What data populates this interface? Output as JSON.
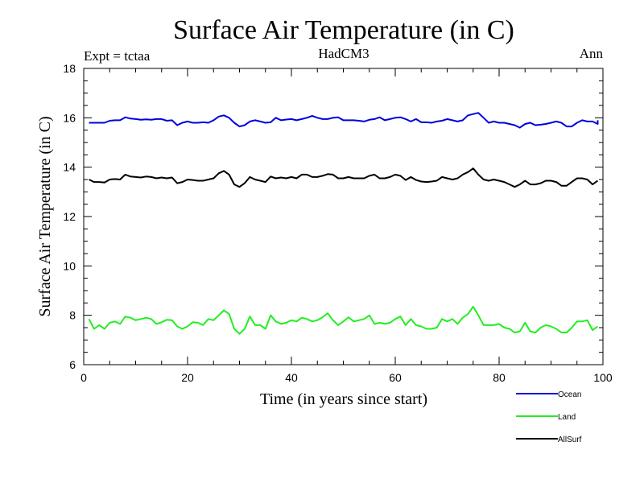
{
  "chart_data": {
    "type": "line",
    "title": "Surface Air Temperature (in C)",
    "subtitle_left": "Expt = tctaa",
    "subtitle_center": "HadCM3",
    "subtitle_right": "Ann",
    "xlabel": "Time (in years since start)",
    "ylabel": "Surface Air Temperature (in C)",
    "xlim": [
      0,
      100
    ],
    "ylim": [
      6,
      18
    ],
    "xticks": [
      0,
      20,
      40,
      60,
      80,
      100
    ],
    "yticks": [
      6,
      8,
      10,
      12,
      14,
      16,
      18
    ],
    "grid": false,
    "legend_position": "bottom-right",
    "x": [
      1,
      2,
      3,
      4,
      5,
      6,
      7,
      8,
      9,
      10,
      11,
      12,
      13,
      14,
      15,
      16,
      17,
      18,
      19,
      20,
      21,
      22,
      23,
      24,
      25,
      26,
      27,
      28,
      29,
      30,
      31,
      32,
      33,
      34,
      35,
      36,
      37,
      38,
      39,
      40,
      41,
      42,
      43,
      44,
      45,
      46,
      47,
      48,
      49,
      50,
      51,
      52,
      53,
      54,
      55,
      56,
      57,
      58,
      59,
      60,
      61,
      62,
      63,
      64,
      65,
      66,
      67,
      68,
      69,
      70,
      71,
      72,
      73,
      74,
      75,
      76,
      77,
      78,
      79,
      80,
      81,
      82,
      83,
      84,
      85,
      86,
      87,
      88,
      89,
      90,
      91,
      92,
      93,
      94,
      95,
      96,
      97,
      98,
      99
    ],
    "series": [
      {
        "name": "Ocean",
        "color": "#0000dd",
        "values": [
          15.8,
          15.8,
          15.8,
          15.8,
          15.88,
          15.9,
          15.9,
          16.02,
          15.97,
          15.95,
          15.92,
          15.94,
          15.92,
          15.95,
          15.95,
          15.88,
          15.9,
          15.7,
          15.8,
          15.85,
          15.8,
          15.8,
          15.82,
          15.8,
          15.9,
          16.05,
          16.1,
          16.0,
          15.8,
          15.65,
          15.7,
          15.85,
          15.9,
          15.85,
          15.8,
          15.82,
          16.0,
          15.9,
          15.93,
          15.95,
          15.9,
          15.95,
          16.0,
          16.08,
          16.0,
          15.95,
          15.95,
          16.0,
          16.02,
          15.9,
          15.9,
          15.9,
          15.88,
          15.85,
          15.92,
          15.95,
          16.02,
          15.9,
          15.95,
          16.0,
          16.02,
          15.95,
          15.85,
          15.95,
          15.82,
          15.82,
          15.8,
          15.85,
          15.88,
          15.95,
          15.9,
          15.85,
          15.9,
          16.1,
          16.15,
          16.2,
          16.0,
          15.8,
          15.85,
          15.8,
          15.8,
          15.75,
          15.7,
          15.6,
          15.75,
          15.8,
          15.7,
          15.72,
          15.75,
          15.8,
          15.85,
          15.8,
          15.65,
          15.65,
          15.8,
          15.9,
          15.85,
          15.85,
          15.75
        ],
        "extra_point": [
          99,
          15.9
        ]
      },
      {
        "name": "Land",
        "color": "#22ee22",
        "values": [
          7.85,
          7.45,
          7.6,
          7.45,
          7.7,
          7.75,
          7.65,
          7.95,
          7.9,
          7.8,
          7.85,
          7.9,
          7.85,
          7.65,
          7.72,
          7.82,
          7.8,
          7.55,
          7.45,
          7.55,
          7.72,
          7.7,
          7.6,
          7.85,
          7.8,
          8.0,
          8.2,
          8.05,
          7.45,
          7.25,
          7.45,
          7.95,
          7.6,
          7.6,
          7.45,
          8.0,
          7.75,
          7.65,
          7.7,
          7.8,
          7.75,
          7.9,
          7.85,
          7.75,
          7.8,
          7.92,
          8.08,
          7.8,
          7.6,
          7.75,
          7.92,
          7.75,
          7.8,
          7.85,
          8.0,
          7.65,
          7.7,
          7.65,
          7.7,
          7.85,
          7.95,
          7.6,
          7.85,
          7.6,
          7.55,
          7.45,
          7.45,
          7.5,
          7.85,
          7.75,
          7.85,
          7.65,
          7.9,
          8.05,
          8.35,
          8.0,
          7.6,
          7.6,
          7.6,
          7.65,
          7.5,
          7.45,
          7.3,
          7.35,
          7.7,
          7.35,
          7.3,
          7.5,
          7.6,
          7.55,
          7.45,
          7.3,
          7.3,
          7.5,
          7.75,
          7.75,
          7.8,
          7.4,
          7.55
        ],
        "extra_point": null
      },
      {
        "name": "AllSurf",
        "color": "#000000",
        "values": [
          13.5,
          13.4,
          13.4,
          13.38,
          13.5,
          13.52,
          13.5,
          13.7,
          13.62,
          13.6,
          13.58,
          13.62,
          13.6,
          13.55,
          13.58,
          13.55,
          13.58,
          13.35,
          13.4,
          13.5,
          13.48,
          13.45,
          13.45,
          13.5,
          13.55,
          13.75,
          13.85,
          13.7,
          13.3,
          13.2,
          13.35,
          13.6,
          13.5,
          13.45,
          13.4,
          13.62,
          13.55,
          13.58,
          13.55,
          13.6,
          13.55,
          13.7,
          13.7,
          13.6,
          13.6,
          13.65,
          13.72,
          13.7,
          13.55,
          13.55,
          13.6,
          13.55,
          13.55,
          13.55,
          13.65,
          13.7,
          13.55,
          13.55,
          13.6,
          13.7,
          13.65,
          13.48,
          13.6,
          13.48,
          13.42,
          13.4,
          13.42,
          13.45,
          13.6,
          13.55,
          13.5,
          13.55,
          13.7,
          13.8,
          13.95,
          13.7,
          13.5,
          13.45,
          13.5,
          13.45,
          13.4,
          13.3,
          13.2,
          13.3,
          13.45,
          13.3,
          13.3,
          13.35,
          13.45,
          13.45,
          13.4,
          13.25,
          13.25,
          13.4,
          13.55,
          13.55,
          13.5,
          13.3,
          13.45
        ],
        "extra_point": null
      }
    ]
  }
}
